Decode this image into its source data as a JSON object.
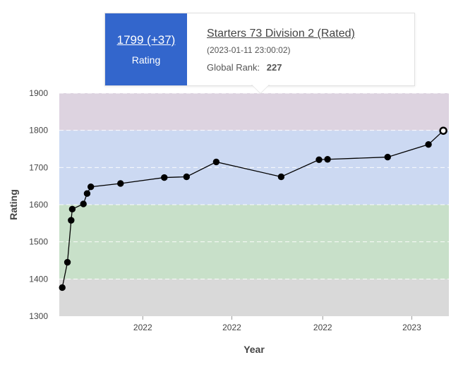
{
  "tooltip": {
    "rating": "1799 (+37)",
    "rating_label": "Rating",
    "contest": "Starters 73 Division 2 (Rated)",
    "date": "(2023-01-11 23:00:02)",
    "rank_label": "Global Rank:",
    "rank_value": "227"
  },
  "chart_data": {
    "type": "line",
    "title": "",
    "xlabel": "Year",
    "ylabel": "Rating",
    "ylim": [
      1300,
      1900
    ],
    "yticks": [
      1300,
      1400,
      1500,
      1600,
      1700,
      1800,
      1900
    ],
    "xlim": [
      0,
      10.5
    ],
    "xticks": [
      {
        "value": 2.25,
        "label": "2022"
      },
      {
        "value": 4.65,
        "label": "2022"
      },
      {
        "value": 7.1,
        "label": "2022"
      },
      {
        "value": 9.5,
        "label": "2023"
      }
    ],
    "grid": "horizontal-dashed",
    "bands": [
      {
        "from": 1300,
        "to": 1400,
        "color": "#d9d9d9"
      },
      {
        "from": 1400,
        "to": 1600,
        "color": "#c8e0c9"
      },
      {
        "from": 1600,
        "to": 1800,
        "color": "#ccd9f2"
      },
      {
        "from": 1800,
        "to": 1900,
        "color": "#ddd3e0"
      }
    ],
    "line_color": "#000000",
    "series": [
      {
        "x": [
          0.08,
          0.22,
          0.32,
          0.35,
          0.65,
          0.75,
          0.85,
          1.65,
          2.83,
          3.43,
          4.23,
          5.98,
          7.0,
          7.23,
          8.85,
          9.95,
          10.35
        ],
        "y": [
          1377,
          1445,
          1558,
          1588,
          1602,
          1630,
          1648,
          1657,
          1673,
          1675,
          1715,
          1675,
          1721,
          1722,
          1728,
          1762,
          1799
        ]
      }
    ],
    "highlighted_point": 16
  }
}
